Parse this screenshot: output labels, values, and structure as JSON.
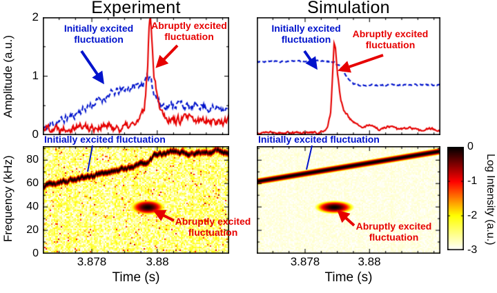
{
  "colors": {
    "blue": "#0013cc",
    "red": "#e60000",
    "axis": "#000000"
  },
  "annotations": {
    "initial_two_line": "Initially excited\nfluctuation",
    "abrupt_two_line": "Abruptly excited\nfluctuation",
    "initial_one_line": "Initially excited fluctuation"
  },
  "colorbar": {
    "label": "Log Intensity (a.u.)",
    "tick_labels": [
      "0",
      "-1",
      "-2",
      "-3"
    ],
    "range": [
      -3,
      0
    ]
  },
  "chart_data": [
    {
      "id": "experiment-amplitude",
      "type": "line",
      "title": "Experiment",
      "ylabel": "Amplitude (a.u.)",
      "xlim": [
        3.8765,
        3.8822
      ],
      "ylim": [
        0,
        2
      ],
      "xticks": [
        3.878,
        3.88
      ],
      "xminor": 0.0005,
      "yticks": [
        0,
        1,
        2
      ],
      "yminor": 0.5,
      "ytick_labels": [
        "0",
        "1",
        "2"
      ],
      "series": [
        {
          "name": "Initially excited fluctuation",
          "color": "#0013cc",
          "dash": true,
          "seed": 11,
          "noise": 0.05,
          "points": [
            [
              3.8765,
              0.1
            ],
            [
              3.877,
              0.24
            ],
            [
              3.8774,
              0.32
            ],
            [
              3.8778,
              0.46
            ],
            [
              3.8782,
              0.58
            ],
            [
              3.8786,
              0.7
            ],
            [
              3.879,
              0.78
            ],
            [
              3.8794,
              0.84
            ],
            [
              3.8796,
              0.88
            ],
            [
              3.8798,
              1.02
            ],
            [
              3.8799,
              0.72
            ],
            [
              3.8801,
              0.52
            ],
            [
              3.8804,
              0.5
            ],
            [
              3.8807,
              0.55
            ],
            [
              3.881,
              0.46
            ],
            [
              3.8813,
              0.52
            ],
            [
              3.8816,
              0.44
            ],
            [
              3.8819,
              0.48
            ],
            [
              3.8822,
              0.42
            ]
          ]
        },
        {
          "name": "Abruptly excited fluctuation",
          "color": "#e60000",
          "dash": false,
          "seed": 22,
          "noise": 0.055,
          "points": [
            [
              3.8765,
              0.14
            ],
            [
              3.877,
              0.12
            ],
            [
              3.8775,
              0.16
            ],
            [
              3.878,
              0.13
            ],
            [
              3.8785,
              0.15
            ],
            [
              3.8789,
              0.12
            ],
            [
              3.8792,
              0.16
            ],
            [
              3.8794,
              0.22
            ],
            [
              3.8796,
              0.4
            ],
            [
              3.8797,
              1.1
            ],
            [
              3.87975,
              1.85
            ],
            [
              3.8798,
              2.0
            ],
            [
              3.87985,
              1.55
            ],
            [
              3.8799,
              1.05
            ],
            [
              3.88,
              0.7
            ],
            [
              3.8801,
              0.45
            ],
            [
              3.8803,
              0.3
            ],
            [
              3.8806,
              0.24
            ],
            [
              3.8809,
              0.3
            ],
            [
              3.8812,
              0.22
            ],
            [
              3.8815,
              0.28
            ],
            [
              3.8818,
              0.22
            ],
            [
              3.8822,
              0.26
            ]
          ]
        }
      ]
    },
    {
      "id": "simulation-amplitude",
      "type": "line",
      "title": "Simulation",
      "xlim": [
        3.8765,
        3.8822
      ],
      "ylim": [
        0,
        1.6
      ],
      "xticks": [
        3.878,
        3.88
      ],
      "xminor": 0.0005,
      "yticks": [],
      "yminor": null,
      "series": [
        {
          "name": "Initially excited fluctuation",
          "color": "#0013cc",
          "dash": true,
          "seed": 3,
          "noise": 0.008,
          "points": [
            [
              3.8765,
              1.0
            ],
            [
              3.8787,
              1.0
            ],
            [
              3.8789,
              0.99
            ],
            [
              3.8791,
              0.93
            ],
            [
              3.8793,
              0.78
            ],
            [
              3.8795,
              0.7
            ],
            [
              3.8797,
              0.68
            ],
            [
              3.8822,
              0.68
            ]
          ]
        },
        {
          "name": "Abruptly excited fluctuation",
          "color": "#e60000",
          "dash": false,
          "seed": 4,
          "noise": 0.012,
          "points": [
            [
              3.8765,
              0.03
            ],
            [
              3.8783,
              0.03
            ],
            [
              3.8786,
              0.05
            ],
            [
              3.8787,
              0.1
            ],
            [
              3.8788,
              0.32
            ],
            [
              3.87885,
              0.8
            ],
            [
              3.8789,
              1.25
            ],
            [
              3.87895,
              1.15
            ],
            [
              3.879,
              0.85
            ],
            [
              3.8791,
              0.5
            ],
            [
              3.8792,
              0.33
            ],
            [
              3.8794,
              0.22
            ],
            [
              3.8796,
              0.14
            ],
            [
              3.8798,
              0.1
            ],
            [
              3.88,
              0.14
            ],
            [
              3.8803,
              0.08
            ],
            [
              3.8806,
              0.12
            ],
            [
              3.8809,
              0.07
            ],
            [
              3.8812,
              0.1
            ],
            [
              3.8816,
              0.06
            ],
            [
              3.8819,
              0.09
            ],
            [
              3.8822,
              0.05
            ]
          ]
        }
      ]
    },
    {
      "id": "experiment-spectrogram",
      "type": "heatmap",
      "ylabel": "Frequency (kHz)",
      "xlabel": "Time (s)",
      "xlim": [
        3.8765,
        3.8822
      ],
      "ylim": [
        0,
        92
      ],
      "xticks": [
        3.878,
        3.88
      ],
      "xminor": 0.0005,
      "yticks": [
        0,
        20,
        40,
        60,
        80
      ],
      "yminor": 10,
      "ytick_labels": [
        "0",
        "20",
        "40",
        "60",
        "80"
      ],
      "xtick_labels": [
        "3.878",
        "3.88"
      ],
      "vlim": [
        -3,
        0
      ],
      "chirp": {
        "points": [
          [
            3.8765,
            58
          ],
          [
            3.8772,
            62
          ],
          [
            3.878,
            67
          ],
          [
            3.8788,
            72
          ],
          [
            3.8794,
            76
          ],
          [
            3.8797,
            79
          ],
          [
            3.8799,
            85
          ],
          [
            3.8802,
            86.5
          ],
          [
            3.8822,
            87
          ]
        ],
        "sigma": 2.6,
        "jitter": 1.2,
        "flicker": 0.55,
        "peak": 0
      },
      "burst": {
        "t": 3.8797,
        "f": 40,
        "sigma_t": 0.0004,
        "sigma_f": 5.0,
        "peak": -0.05
      },
      "background": {
        "base": -2.55,
        "speckle": 0.55,
        "blotch": 0.03,
        "stripe": 0.25,
        "seed": 5
      }
    },
    {
      "id": "simulation-spectrogram",
      "type": "heatmap",
      "xlabel": "Time (s)",
      "xlim": [
        3.8765,
        3.8822
      ],
      "ylim": [
        0,
        92
      ],
      "xticks": [
        3.878,
        3.88
      ],
      "xminor": 0.0005,
      "yticks": [
        0,
        20,
        40,
        60,
        80
      ],
      "yminor": 10,
      "xtick_labels": [
        "3.878",
        "3.88"
      ],
      "vlim": [
        -3,
        0
      ],
      "chirp": {
        "points": [
          [
            3.8765,
            62
          ],
          [
            3.8822,
            88
          ]
        ],
        "sigma": 2.3,
        "jitter": 0,
        "flicker": 0,
        "peak": 0
      },
      "burst": {
        "t": 3.8789,
        "f": 40,
        "sigma_t": 0.00045,
        "sigma_f": 4.2,
        "peak": 0
      },
      "background": {
        "base": -2.9,
        "speckle": 0.1,
        "blotch": 0,
        "stripe": 0.04,
        "seed": 9
      }
    }
  ]
}
